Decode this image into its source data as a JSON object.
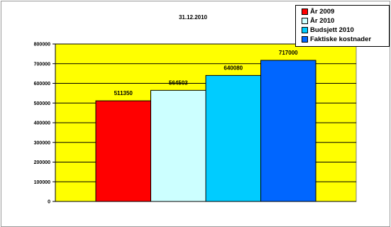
{
  "chart_data": {
    "type": "bar",
    "title": "31.12.2010",
    "xlabel": "",
    "ylabel": "",
    "ylim": [
      0,
      800000
    ],
    "yticks": [
      0,
      100000,
      200000,
      300000,
      400000,
      500000,
      600000,
      700000,
      800000
    ],
    "categories": [
      ""
    ],
    "grid": true,
    "legend_position": "top-right",
    "plot_background": "#ffff00",
    "series": [
      {
        "name": "År 2009",
        "values": [
          511350
        ],
        "color": "#ff0000"
      },
      {
        "name": "År 2010",
        "values": [
          564503
        ],
        "color": "#ccffff"
      },
      {
        "name": "Budsjett 2010",
        "values": [
          640080
        ],
        "color": "#00ccff"
      },
      {
        "name": "Faktiske kostnader",
        "values": [
          717000
        ],
        "color": "#0066ff"
      }
    ]
  }
}
